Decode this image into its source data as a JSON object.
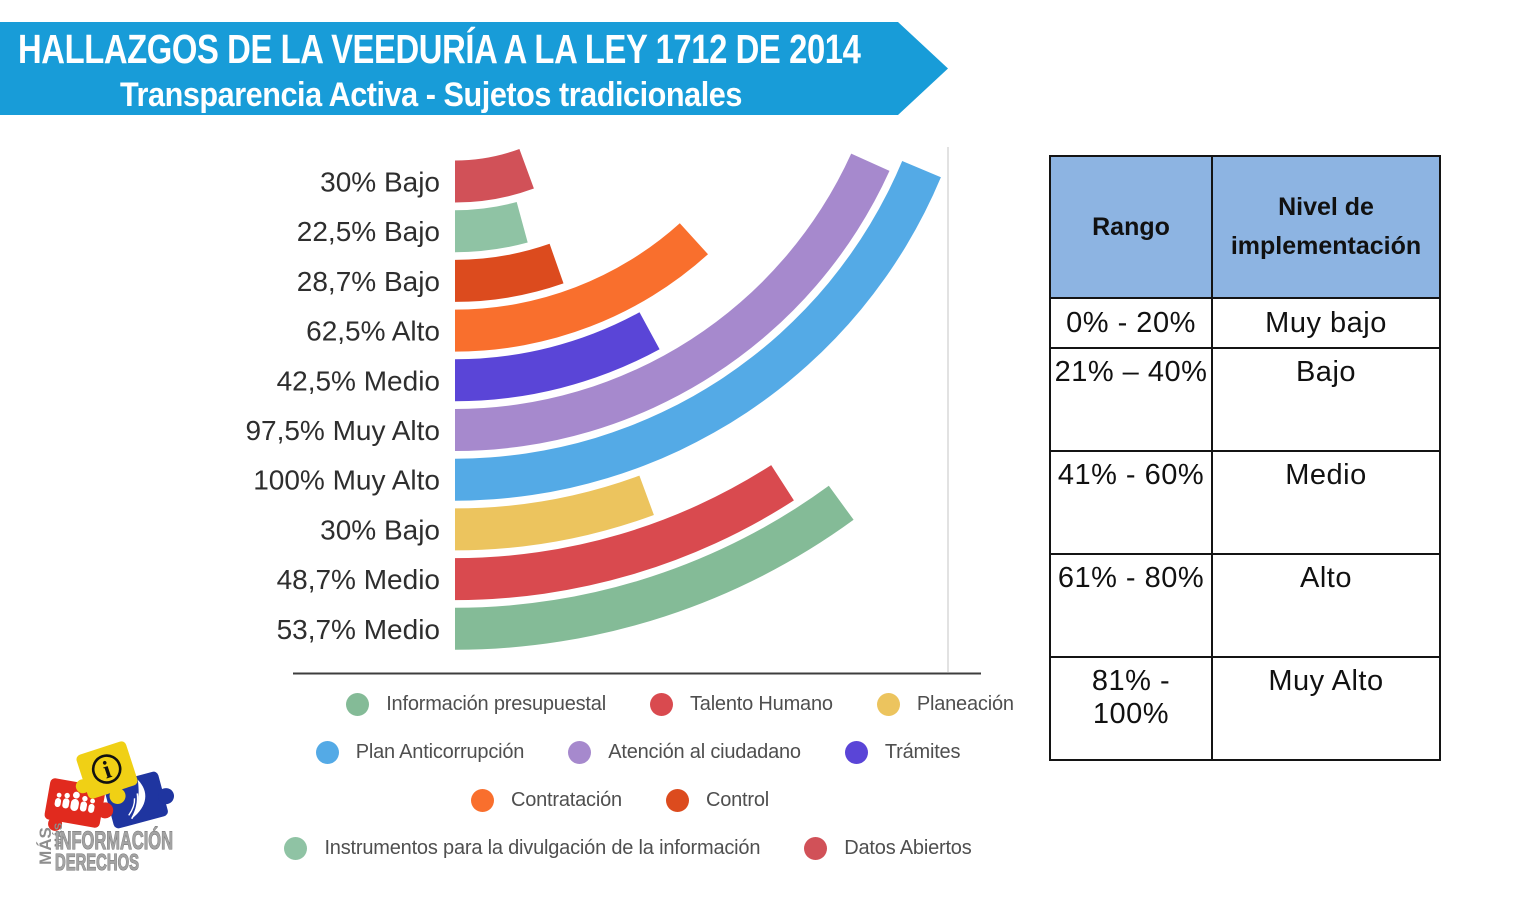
{
  "header": {
    "line1": "HALLAZGOS DE LA VEEDURÍA A LA LEY 1712 DE 2014",
    "line2": "Transparencia Activa - Sujetos tradicionales",
    "banner_color": "#189cd8"
  },
  "chart_data": {
    "type": "radial-bar",
    "unit": "percent",
    "scale_max": 100,
    "bars": [
      {
        "category": "Datos Abiertos",
        "value": 30,
        "level": "Bajo",
        "label": "30% Bajo",
        "color": "#d15158"
      },
      {
        "category": "Instrumentos para la divulgación de la información",
        "value": 22.5,
        "level": "Bajo",
        "label": "22,5% Bajo",
        "color": "#8fc3a4"
      },
      {
        "category": "Control",
        "value": 28.7,
        "level": "Bajo",
        "label": "28,7% Bajo",
        "color": "#dc4b1e"
      },
      {
        "category": "Contratación",
        "value": 62.5,
        "level": "Alto",
        "label": "62,5% Alto",
        "color": "#f96f2d"
      },
      {
        "category": "Trámites",
        "value": 42.5,
        "level": "Medio",
        "label": "42,5% Medio",
        "color": "#5a45d7"
      },
      {
        "category": "Atención al ciudadano",
        "value": 97.5,
        "level": "Muy Alto",
        "label": "97,5% Muy Alto",
        "color": "#a689cd"
      },
      {
        "category": "Plan Anticorrupción",
        "value": 100,
        "level": "Muy Alto",
        "label": "100% Muy Alto",
        "color": "#54aae6"
      },
      {
        "category": "Planeación",
        "value": 30,
        "level": "Bajo",
        "label": "30% Bajo",
        "color": "#ecc45e"
      },
      {
        "category": "Talento Humano",
        "value": 48.7,
        "level": "Medio",
        "label": "48,7% Medio",
        "color": "#d94a4f"
      },
      {
        "category": "Información presupuestal",
        "value": 53.7,
        "level": "Medio",
        "label": "53,7% Medio",
        "color": "#84bb97"
      }
    ],
    "legend": [
      {
        "label": "Información presupuestal",
        "color": "#84bb97"
      },
      {
        "label": "Talento Humano",
        "color": "#d94a4f"
      },
      {
        "label": "Planeación",
        "color": "#ecc45e"
      },
      {
        "label": "Plan Anticorrupción",
        "color": "#54aae6"
      },
      {
        "label": "Atención al ciudadano",
        "color": "#a689cd"
      },
      {
        "label": "Trámites",
        "color": "#5a45d7"
      },
      {
        "label": "Contratación",
        "color": "#f96f2d"
      },
      {
        "label": "Control",
        "color": "#dc4b1e"
      },
      {
        "label": "Instrumentos para la divulgación de la información",
        "color": "#8fc3a4"
      },
      {
        "label": "Datos Abiertos",
        "color": "#d15158"
      }
    ],
    "legend_rows": [
      [
        0,
        1,
        2
      ],
      [
        3,
        4,
        5
      ],
      [
        6,
        7
      ],
      [
        8,
        9
      ]
    ]
  },
  "table": {
    "header_bg": "#8db4e2",
    "headers": [
      "Rango",
      "Nivel de implementación"
    ],
    "rows": [
      [
        "0% - 20%",
        "Muy bajo"
      ],
      [
        "21% – 40%",
        "Bajo"
      ],
      [
        "41% - 60%",
        "Medio"
      ],
      [
        "61% - 80%",
        "Alto"
      ],
      [
        "81% - 100%",
        "Muy Alto"
      ]
    ]
  },
  "logo": {
    "word_vertical": "MÁS",
    "word1": "INFORMACIÓN",
    "word2": "DERECHOS",
    "info_symbol": "i"
  }
}
